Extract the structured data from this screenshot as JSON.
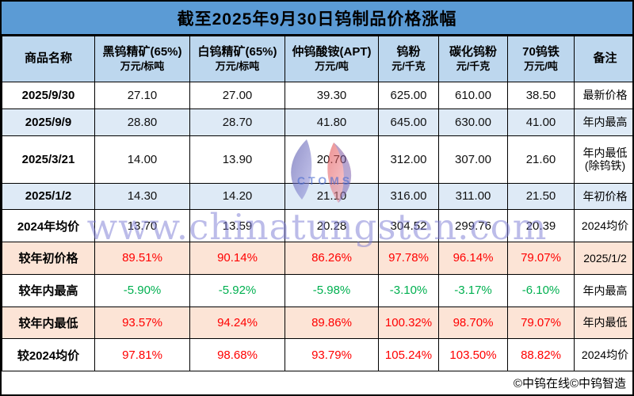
{
  "title": "截至2025年9月30日钨制品价格涨幅",
  "table": {
    "columns": [
      {
        "name": "商品名称",
        "unit": ""
      },
      {
        "name": "黑钨精矿(65%)",
        "unit": "万元/标吨"
      },
      {
        "name": "白钨精矿(65%)",
        "unit": "万元/标吨"
      },
      {
        "name": "仲钨酸铵(APT)",
        "unit": "万元/吨"
      },
      {
        "name": "钨粉",
        "unit": "元/千克"
      },
      {
        "name": "碳化钨粉",
        "unit": "元/千克"
      },
      {
        "name": "70钨铁",
        "unit": "万元/吨"
      },
      {
        "name": "备注",
        "unit": ""
      }
    ],
    "rows": [
      {
        "label": "2025/9/30",
        "values": [
          "27.10",
          "27.00",
          "39.30",
          "625.00",
          "610.00",
          "38.50"
        ],
        "remark": "最新价格",
        "bg": "white",
        "color": "black"
      },
      {
        "label": "2025/9/9",
        "values": [
          "28.80",
          "28.70",
          "41.80",
          "645.00",
          "630.00",
          "41.00"
        ],
        "remark": "年内最高",
        "bg": "blue",
        "color": "black"
      },
      {
        "label": "2025/3/21",
        "values": [
          "14.00",
          "13.90",
          "20.70",
          "312.00",
          "307.00",
          "21.60"
        ],
        "remark": "年内最低(除钨铁)",
        "bg": "white",
        "color": "black"
      },
      {
        "label": "2025/1/2",
        "values": [
          "14.30",
          "14.20",
          "21.10",
          "316.00",
          "311.00",
          "21.50"
        ],
        "remark": "年初价格",
        "bg": "blue",
        "color": "black"
      },
      {
        "label": "2024年均价",
        "values": [
          "13.70",
          "13.59",
          "20.28",
          "304.52",
          "299.76",
          "20.39"
        ],
        "remark": "2024均价",
        "bg": "white",
        "color": "black"
      },
      {
        "label": "较年初价格",
        "values": [
          "89.51%",
          "90.14%",
          "86.26%",
          "97.78%",
          "96.14%",
          "79.07%"
        ],
        "remark": "2025/1/2",
        "bg": "pink",
        "color": "red"
      },
      {
        "label": "较年内最高",
        "values": [
          "-5.90%",
          "-5.92%",
          "-5.98%",
          "-3.10%",
          "-3.17%",
          "-6.10%"
        ],
        "remark": "年内最高",
        "bg": "white",
        "color": "green"
      },
      {
        "label": "较年内最低",
        "values": [
          "93.57%",
          "94.24%",
          "89.86%",
          "100.32%",
          "98.70%",
          "79.07%"
        ],
        "remark": "年内最低",
        "bg": "pink",
        "color": "red"
      },
      {
        "label": "较2024均价",
        "values": [
          "97.81%",
          "98.68%",
          "93.79%",
          "105.24%",
          "103.50%",
          "88.82%"
        ],
        "remark": "2024均价",
        "bg": "white",
        "color": "red"
      }
    ]
  },
  "footer": {
    "text": "©中钨在线©中钨智造"
  },
  "watermark": {
    "url": "www.chinatungsten.com",
    "logo_letters": "CTOMS"
  },
  "colors": {
    "title_bg": "#5B9BD5",
    "header_bg": "#BDD7EE",
    "row_blue": "#DEEAF6",
    "row_pink": "#FCE4D6",
    "text_red": "#FF0000",
    "text_green": "#00B050",
    "watermark_blue": "#7B7BD5"
  }
}
